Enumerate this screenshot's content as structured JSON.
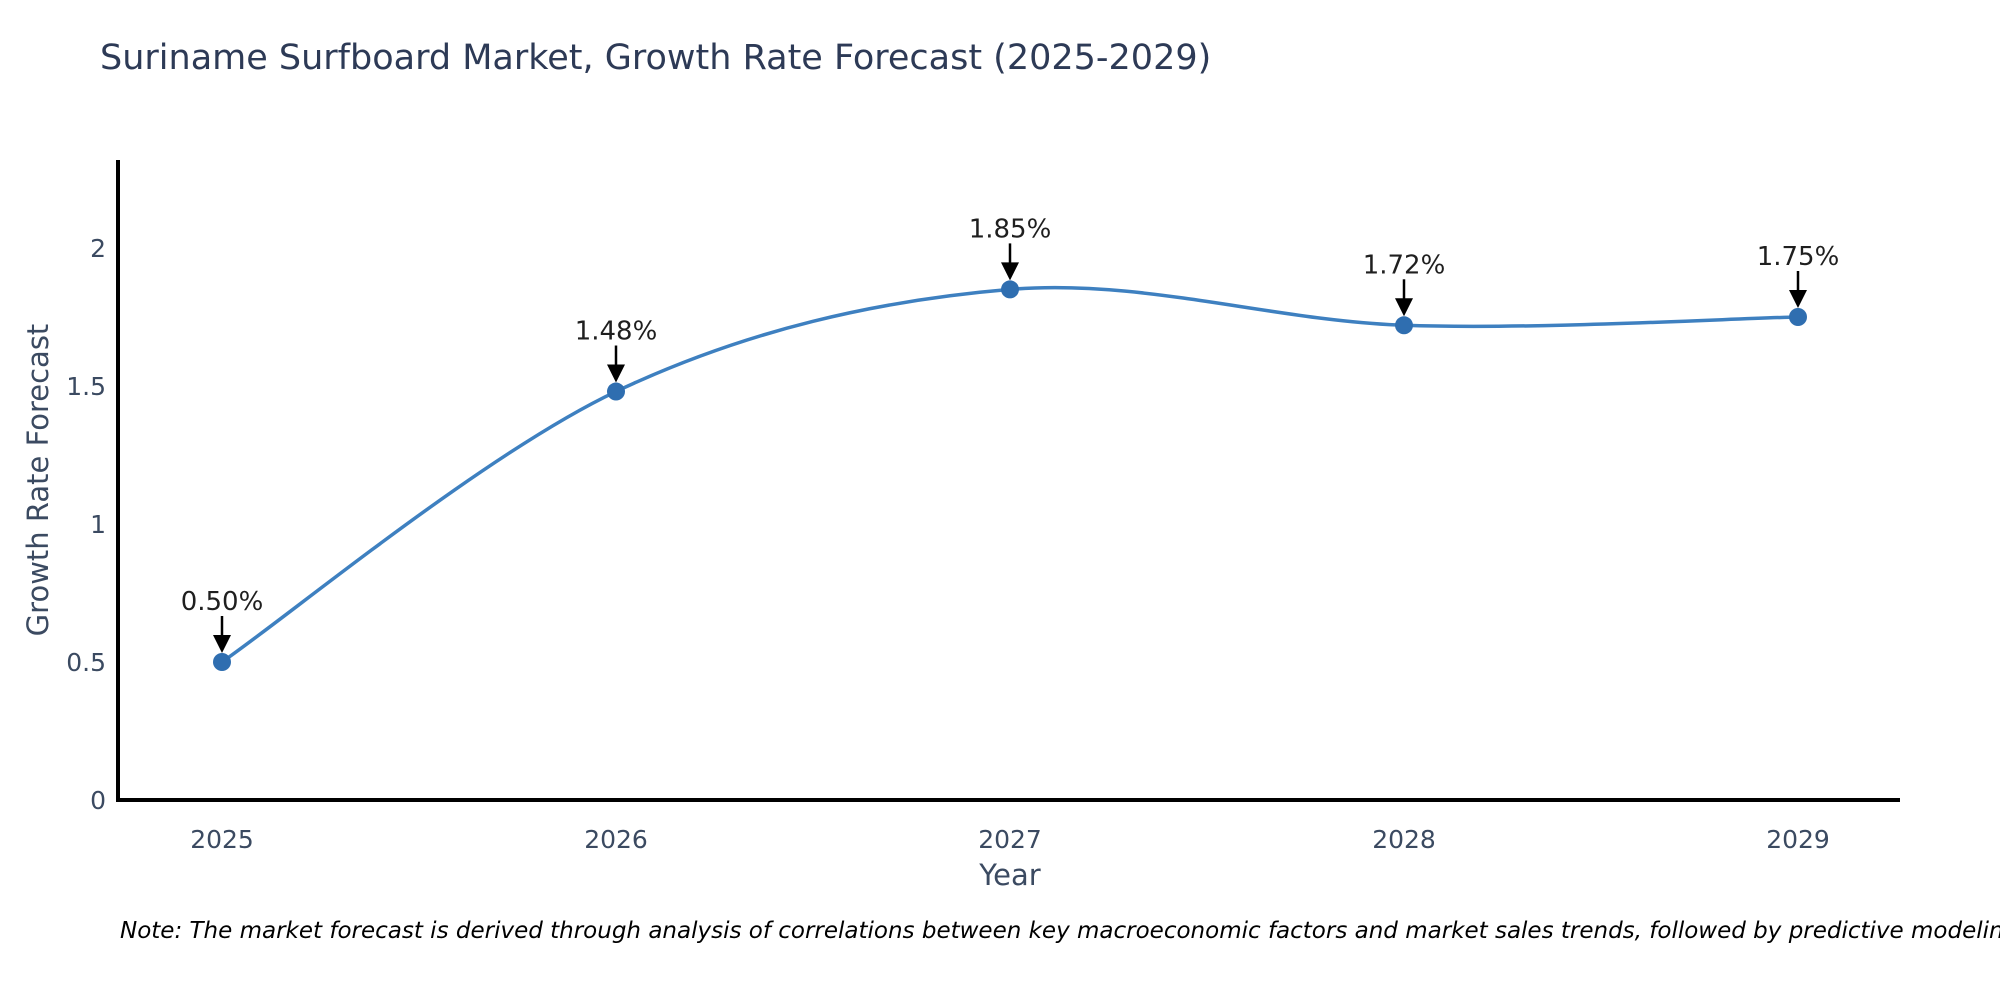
{
  "page": {
    "background": "#ffffff"
  },
  "chart_data": {
    "type": "line",
    "title": "Suriname Surfboard Market, Growth Rate Forecast (2025-2029)",
    "xlabel": "Year",
    "ylabel": "Growth Rate Forecast",
    "categories": [
      "2025",
      "2026",
      "2027",
      "2028",
      "2029"
    ],
    "series": [
      {
        "name": "Growth Rate Forecast",
        "values": [
          0.5,
          1.48,
          1.85,
          1.72,
          1.75
        ]
      }
    ],
    "point_labels": [
      "0.50%",
      "1.48%",
      "1.85%",
      "1.72%",
      "1.75%"
    ],
    "ytick_values": [
      0,
      0.5,
      1,
      1.5,
      2
    ],
    "ytick_labels": [
      "0",
      "0.5",
      "1",
      "1.5",
      "2"
    ],
    "ylim": [
      0,
      2.32
    ],
    "grid": false,
    "legend_position": "none",
    "colors": {
      "line": "#3e80c0",
      "marker": "#2f6eb0",
      "axis": "#000000",
      "arrow": "#000000",
      "tick_text": "#3b4a61",
      "title_text": "#2d3a56",
      "axis_label_text": "#3b4a61",
      "annotation_text": "#1f1f1f",
      "note_text": "#000000"
    },
    "note": "Note: The market forecast is derived through analysis of correlations between key macroeconomic factors and market sales trends, followed by predictive modeling to project future sales"
  }
}
